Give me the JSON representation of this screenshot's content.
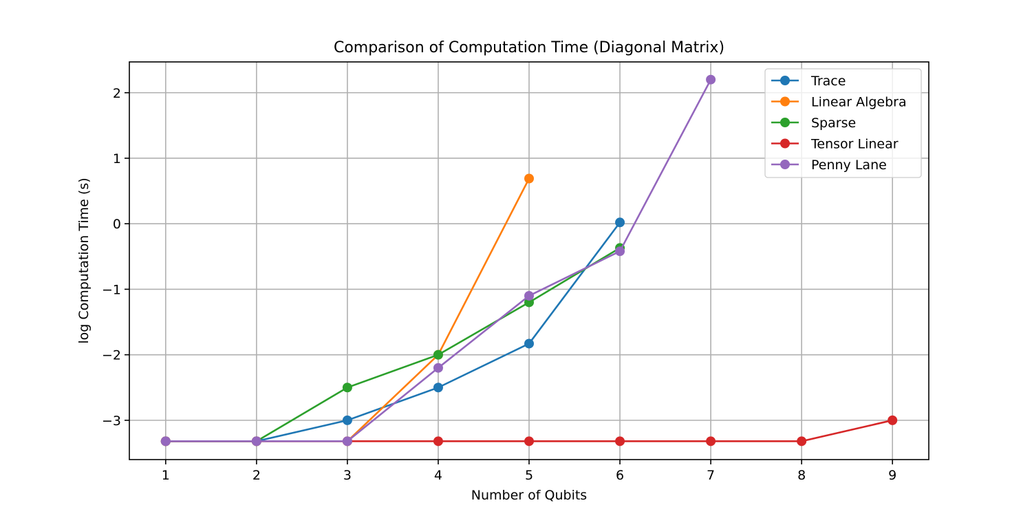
{
  "chart_data": {
    "type": "line",
    "title": "Comparison of Computation Time (Diagonal Matrix)",
    "xlabel": "Number of Qubits",
    "ylabel": "log Computation Time (s)",
    "xlim": [
      0.6,
      9.4
    ],
    "ylim": [
      -3.6,
      2.47
    ],
    "xticks": [
      1,
      2,
      3,
      4,
      5,
      6,
      7,
      8,
      9
    ],
    "yticks": [
      -3,
      -2,
      -1,
      0,
      1,
      2
    ],
    "ytick_labels": [
      "−3",
      "−2",
      "−1",
      "0",
      "1",
      "2"
    ],
    "grid": true,
    "legend_position": "top-right",
    "series": [
      {
        "name": "Trace",
        "color": "#1f77b4",
        "x": [
          1,
          2,
          3,
          4,
          5,
          6
        ],
        "y": [
          -3.32,
          -3.32,
          -3.0,
          -2.5,
          -1.83,
          0.02
        ]
      },
      {
        "name": "Linear Algebra",
        "color": "#ff7f0e",
        "x": [
          1,
          2,
          3,
          4,
          5
        ],
        "y": [
          -3.32,
          -3.32,
          -3.32,
          -2.0,
          0.69
        ]
      },
      {
        "name": "Sparse",
        "color": "#2ca02c",
        "x": [
          1,
          2,
          3,
          4,
          5,
          6
        ],
        "y": [
          -3.32,
          -3.32,
          -2.5,
          -2.0,
          -1.2,
          -0.37
        ]
      },
      {
        "name": "Tensor Linear",
        "color": "#d62728",
        "x": [
          1,
          2,
          3,
          4,
          5,
          6,
          7,
          8,
          9
        ],
        "y": [
          -3.32,
          -3.32,
          -3.32,
          -3.32,
          -3.32,
          -3.32,
          -3.32,
          -3.32,
          -3.0
        ]
      },
      {
        "name": "Penny Lane",
        "color": "#9467bd",
        "x": [
          1,
          2,
          3,
          4,
          5,
          6,
          7
        ],
        "y": [
          -3.32,
          -3.32,
          -3.32,
          -2.2,
          -1.1,
          -0.42,
          2.2
        ]
      }
    ]
  }
}
